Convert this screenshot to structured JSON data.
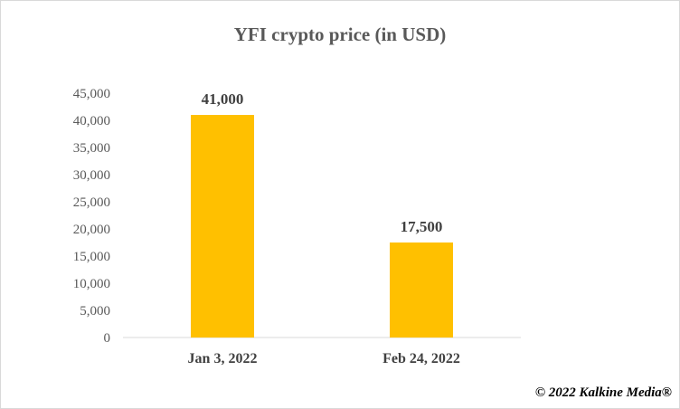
{
  "chart_data": {
    "type": "bar",
    "title": "YFI crypto price (in USD)",
    "categories": [
      "Jan 3, 2022",
      "Feb 24, 2022"
    ],
    "values": [
      41000,
      17500
    ],
    "data_labels": [
      "41,000",
      "17,500"
    ],
    "xlabel": "",
    "ylabel": "",
    "ylim": [
      0,
      45000
    ],
    "yticks": [
      0,
      5000,
      10000,
      15000,
      20000,
      25000,
      30000,
      35000,
      40000,
      45000
    ],
    "ytick_labels": [
      "0",
      "5,000",
      "10,000",
      "15,000",
      "20,000",
      "25,000",
      "30,000",
      "35,000",
      "40,000",
      "45,000"
    ],
    "grid": false,
    "legend": "none",
    "bar_color": "#FFC000"
  },
  "credit": "© 2022 Kalkine Media®"
}
